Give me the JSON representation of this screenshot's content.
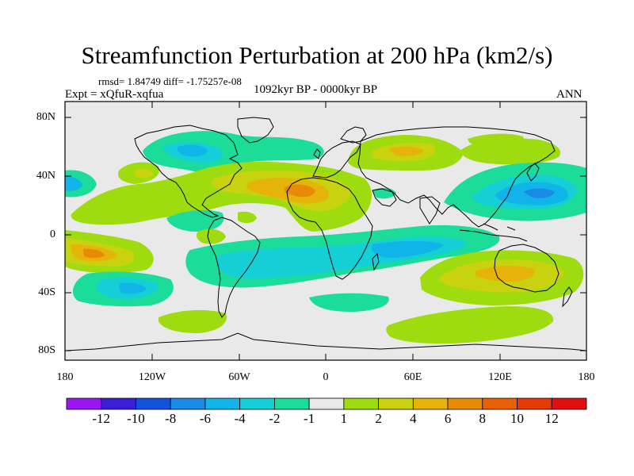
{
  "title": "Streamfunction Perturbation at 200 hPa (km2/s)",
  "stats_text": "rmsd= 1.84749 diff= -1.75257e-08",
  "period_text": "1092kyr BP - 0000kyr BP",
  "experiment_text": "Expt = xQfuR-xqfua",
  "season_text": "ANN",
  "lat_labels": [
    "80N",
    "40N",
    "0",
    "40S",
    "80S"
  ],
  "lon_labels": [
    "180",
    "120W",
    "60W",
    "0",
    "60E",
    "120E",
    "180"
  ],
  "colorbar": {
    "labels": [
      "-12",
      "-10",
      "-8",
      "-6",
      "-4",
      "-2",
      "-1",
      "1",
      "2",
      "4",
      "6",
      "8",
      "10",
      "12"
    ],
    "colors": [
      "#9a16f0",
      "#3a1ed8",
      "#1552dc",
      "#1a8ae6",
      "#10b4e8",
      "#14d0d6",
      "#1cdc9a",
      "#e9e9e9",
      "#9edc10",
      "#c8d20e",
      "#e6b408",
      "#e88a06",
      "#e86204",
      "#e63a04",
      "#e01010"
    ]
  },
  "colors": {
    "background_field": "#e9e9e9",
    "coastline": "#000000"
  }
}
